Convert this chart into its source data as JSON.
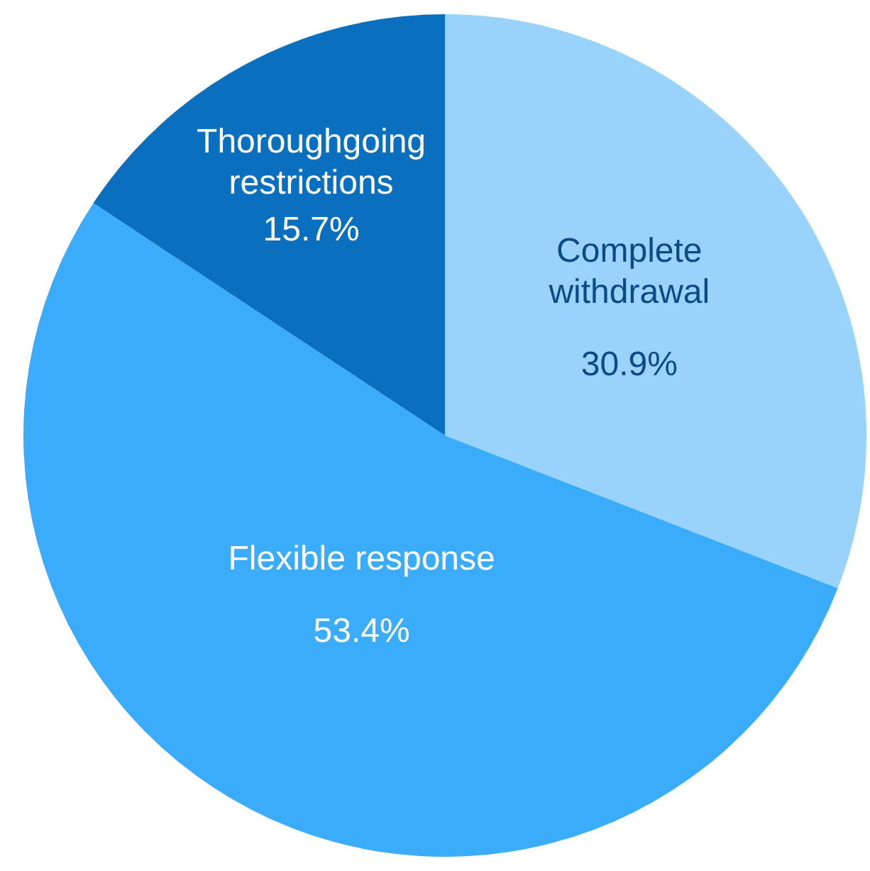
{
  "chart_data": {
    "type": "pie",
    "categories": [
      "Complete withdrawal",
      "Flexible response",
      "Thoroughgoing restrictions"
    ],
    "values": [
      30.9,
      53.4,
      15.7
    ],
    "colors": [
      "#99d3fb",
      "#3aacfa",
      "#0a6fbf"
    ],
    "value_labels": [
      "30.9%",
      "53.4%",
      "15.7%"
    ],
    "legend": false
  }
}
